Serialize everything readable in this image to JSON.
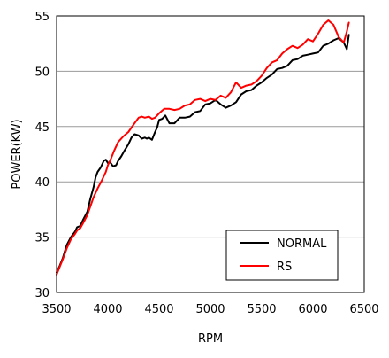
{
  "chart_data": {
    "type": "line",
    "title": "",
    "xlabel": "RPM",
    "ylabel": "POWER(KW)",
    "xlim": [
      3500,
      6500
    ],
    "ylim": [
      30,
      55
    ],
    "xticks": [
      3500,
      4000,
      4500,
      5000,
      5500,
      6000,
      6500
    ],
    "yticks": [
      30,
      35,
      40,
      45,
      50,
      55
    ],
    "grid": "horizontal",
    "legend_position": "bottom-right",
    "series": [
      {
        "name": "NORMAL",
        "color": "#000000",
        "x": [
          3500,
          3530,
          3560,
          3600,
          3640,
          3680,
          3700,
          3730,
          3760,
          3800,
          3830,
          3860,
          3880,
          3900,
          3930,
          3960,
          3980,
          4000,
          4020,
          4050,
          4080,
          4100,
          4130,
          4160,
          4200,
          4230,
          4260,
          4300,
          4330,
          4360,
          4380,
          4400,
          4430,
          4460,
          4480,
          4500,
          4530,
          4560,
          4600,
          4650,
          4700,
          4750,
          4800,
          4850,
          4900,
          4950,
          5000,
          5050,
          5100,
          5150,
          5200,
          5250,
          5300,
          5350,
          5400,
          5450,
          5500,
          5550,
          5600,
          5650,
          5700,
          5750,
          5800,
          5850,
          5900,
          5950,
          6000,
          6050,
          6100,
          6150,
          6200,
          6250,
          6300,
          6330,
          6350
        ],
        "values": [
          31.8,
          32.4,
          33.1,
          34.3,
          35.0,
          35.5,
          35.9,
          36.0,
          36.6,
          37.3,
          38.5,
          39.5,
          40.4,
          40.9,
          41.3,
          41.9,
          42.0,
          41.7,
          41.8,
          41.4,
          41.5,
          41.9,
          42.3,
          42.8,
          43.4,
          44.0,
          44.3,
          44.2,
          43.9,
          44.0,
          43.9,
          44.0,
          43.8,
          44.5,
          44.9,
          45.6,
          45.7,
          46.0,
          45.3,
          45.3,
          45.8,
          45.8,
          45.9,
          46.3,
          46.4,
          47.0,
          47.1,
          47.4,
          47.0,
          46.7,
          46.9,
          47.2,
          47.9,
          48.2,
          48.3,
          48.7,
          49.0,
          49.4,
          49.7,
          50.2,
          50.3,
          50.5,
          51.0,
          51.1,
          51.4,
          51.5,
          51.6,
          51.7,
          52.3,
          52.5,
          52.8,
          53.0,
          52.6,
          52.0,
          53.3
        ]
      },
      {
        "name": "RS",
        "color": "#ff0000",
        "x": [
          3500,
          3530,
          3560,
          3600,
          3640,
          3680,
          3700,
          3730,
          3760,
          3800,
          3830,
          3860,
          3900,
          3940,
          3980,
          4000,
          4030,
          4060,
          4100,
          4150,
          4200,
          4230,
          4260,
          4300,
          4330,
          4360,
          4400,
          4430,
          4460,
          4500,
          4550,
          4600,
          4650,
          4700,
          4750,
          4800,
          4850,
          4900,
          4950,
          5000,
          5050,
          5100,
          5150,
          5200,
          5250,
          5300,
          5350,
          5400,
          5450,
          5500,
          5550,
          5600,
          5650,
          5700,
          5750,
          5800,
          5850,
          5900,
          5950,
          6000,
          6050,
          6100,
          6150,
          6200,
          6250,
          6300,
          6330,
          6350
        ],
        "values": [
          31.6,
          32.3,
          33.0,
          34.0,
          34.8,
          35.3,
          35.6,
          35.8,
          36.3,
          37.0,
          37.8,
          38.6,
          39.4,
          40.1,
          40.9,
          41.5,
          42.1,
          42.8,
          43.6,
          44.1,
          44.5,
          44.9,
          45.3,
          45.8,
          45.9,
          45.8,
          45.9,
          45.7,
          45.8,
          46.2,
          46.6,
          46.6,
          46.5,
          46.6,
          46.9,
          47.0,
          47.4,
          47.5,
          47.3,
          47.5,
          47.4,
          47.8,
          47.6,
          48.1,
          49.0,
          48.5,
          48.7,
          48.8,
          49.1,
          49.6,
          50.3,
          50.8,
          51.0,
          51.6,
          52.0,
          52.3,
          52.1,
          52.4,
          52.9,
          52.7,
          53.4,
          54.2,
          54.6,
          54.2,
          53.1,
          52.6,
          53.6,
          54.4
        ]
      }
    ]
  }
}
